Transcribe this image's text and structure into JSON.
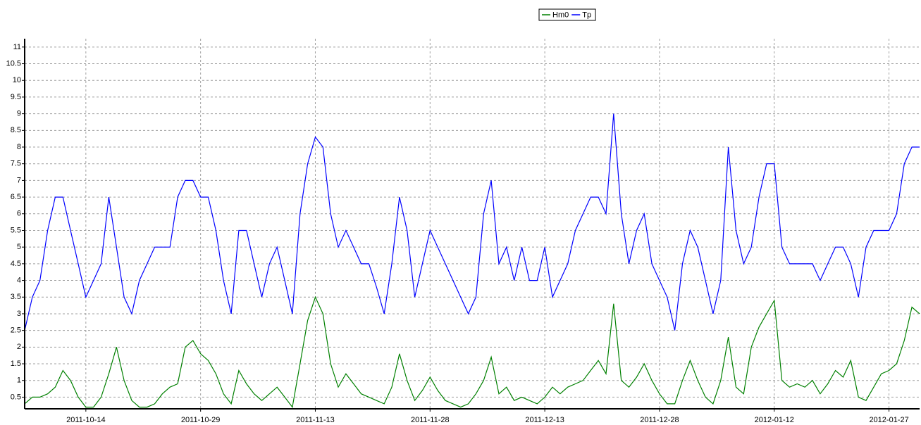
{
  "chart_data": {
    "type": "line",
    "x": [
      "2011-10-06",
      "2011-10-07",
      "2011-10-08",
      "2011-10-09",
      "2011-10-10",
      "2011-10-11",
      "2011-10-12",
      "2011-10-13",
      "2011-10-14",
      "2011-10-15",
      "2011-10-16",
      "2011-10-17",
      "2011-10-18",
      "2011-10-19",
      "2011-10-20",
      "2011-10-21",
      "2011-10-22",
      "2011-10-23",
      "2011-10-24",
      "2011-10-25",
      "2011-10-26",
      "2011-10-27",
      "2011-10-28",
      "2011-10-29",
      "2011-10-30",
      "2011-10-31",
      "2011-11-01",
      "2011-11-02",
      "2011-11-03",
      "2011-11-04",
      "2011-11-05",
      "2011-11-06",
      "2011-11-07",
      "2011-11-08",
      "2011-11-09",
      "2011-11-10",
      "2011-11-11",
      "2011-11-12",
      "2011-11-13",
      "2011-11-14",
      "2011-11-15",
      "2011-11-16",
      "2011-11-17",
      "2011-11-18",
      "2011-11-19",
      "2011-11-20",
      "2011-11-21",
      "2011-11-22",
      "2011-11-23",
      "2011-11-24",
      "2011-11-25",
      "2011-11-26",
      "2011-11-27",
      "2011-11-28",
      "2011-11-29",
      "2011-11-30",
      "2011-12-01",
      "2011-12-02",
      "2011-12-03",
      "2011-12-04",
      "2011-12-05",
      "2011-12-06",
      "2011-12-07",
      "2011-12-08",
      "2011-12-09",
      "2011-12-10",
      "2011-12-11",
      "2011-12-12",
      "2011-12-13",
      "2011-12-14",
      "2011-12-15",
      "2011-12-16",
      "2011-12-17",
      "2011-12-18",
      "2011-12-19",
      "2011-12-20",
      "2011-12-21",
      "2011-12-22",
      "2011-12-23",
      "2011-12-24",
      "2011-12-25",
      "2011-12-26",
      "2011-12-27",
      "2011-12-28",
      "2011-12-29",
      "2011-12-30",
      "2011-12-31",
      "2012-01-01",
      "2012-01-02",
      "2012-01-03",
      "2012-01-04",
      "2012-01-05",
      "2012-01-06",
      "2012-01-07",
      "2012-01-08",
      "2012-01-09",
      "2012-01-10",
      "2012-01-11",
      "2012-01-12",
      "2012-01-13",
      "2012-01-14",
      "2012-01-15",
      "2012-01-16",
      "2012-01-17",
      "2012-01-18",
      "2012-01-19",
      "2012-01-20",
      "2012-01-21",
      "2012-01-22",
      "2012-01-23",
      "2012-01-24",
      "2012-01-25",
      "2012-01-26",
      "2012-01-27",
      "2012-01-28",
      "2012-01-29",
      "2012-01-30",
      "2012-01-31"
    ],
    "series": [
      {
        "name": "Hm0",
        "color": "#008000",
        "values": [
          0.3,
          0.5,
          0.5,
          0.6,
          0.8,
          1.3,
          1.0,
          0.5,
          0.2,
          0.2,
          0.5,
          1.2,
          2.0,
          1.0,
          0.4,
          0.2,
          0.2,
          0.3,
          0.6,
          0.8,
          0.9,
          2.0,
          2.2,
          1.8,
          1.6,
          1.2,
          0.6,
          0.3,
          1.3,
          0.9,
          0.6,
          0.4,
          0.6,
          0.8,
          0.5,
          0.2,
          1.5,
          2.8,
          3.5,
          3.0,
          1.5,
          0.8,
          1.2,
          0.9,
          0.6,
          0.5,
          0.4,
          0.3,
          0.8,
          1.8,
          1.0,
          0.4,
          0.7,
          1.1,
          0.7,
          0.4,
          0.3,
          0.2,
          0.3,
          0.6,
          1.0,
          1.7,
          0.6,
          0.8,
          0.4,
          0.5,
          0.4,
          0.3,
          0.5,
          0.8,
          0.6,
          0.8,
          0.9,
          1.0,
          1.3,
          1.6,
          1.2,
          3.3,
          1.0,
          0.8,
          1.1,
          1.5,
          1.0,
          0.6,
          0.3,
          0.3,
          1.0,
          1.6,
          1.0,
          0.5,
          0.3,
          1.0,
          2.3,
          0.8,
          0.6,
          2.0,
          2.6,
          3.0,
          3.4,
          1.0,
          0.8,
          0.9,
          0.8,
          1.0,
          0.6,
          0.9,
          1.3,
          1.1,
          1.6,
          0.5,
          0.4,
          0.8,
          1.2,
          1.3,
          1.5,
          2.2,
          3.2,
          3.0
        ]
      },
      {
        "name": "Tp",
        "color": "#0000ff",
        "values": [
          2.5,
          3.5,
          4,
          5.5,
          6.5,
          6.5,
          5.5,
          4.5,
          3.5,
          4,
          4.5,
          6.5,
          5,
          3.5,
          3,
          4,
          4.5,
          5,
          5,
          5,
          6.5,
          7,
          7,
          6.5,
          6.5,
          5.5,
          4,
          3,
          5.5,
          5.5,
          4.5,
          3.5,
          4.5,
          5,
          4,
          3,
          6,
          7.5,
          8.3,
          8,
          6,
          5,
          5.5,
          5,
          4.5,
          4.5,
          3.8,
          3,
          4.5,
          6.5,
          5.5,
          3.5,
          4.5,
          5.5,
          5,
          4.5,
          4,
          3.5,
          3,
          3.5,
          6,
          7,
          4.5,
          5,
          4,
          5,
          4,
          4,
          5,
          3.5,
          4,
          4.5,
          5.5,
          6,
          6.5,
          6.5,
          6,
          9,
          6,
          4.5,
          5.5,
          6,
          4.5,
          4,
          3.5,
          2.5,
          4.5,
          5.5,
          5,
          4,
          3,
          4,
          8,
          5.5,
          4.5,
          5,
          6.5,
          7.5,
          7.5,
          5,
          4.5,
          4.5,
          4.5,
          4.5,
          4,
          4.5,
          5,
          5,
          4.5,
          3.5,
          5,
          5.5,
          5.5,
          5.5,
          6,
          7.5,
          8,
          8
        ]
      }
    ],
    "xlim": [
      "2011-10-06",
      "2012-01-31"
    ],
    "xticks": [
      "2011-10-14",
      "2011-10-29",
      "2011-11-13",
      "2011-11-28",
      "2011-12-13",
      "2011-12-28",
      "2012-01-12",
      "2012-01-27"
    ],
    "ylim": [
      0.15,
      11.25
    ],
    "yticks": [
      0.5,
      1,
      1.5,
      2,
      2.5,
      3,
      3.5,
      4,
      4.5,
      5,
      5.5,
      6,
      6.5,
      7,
      7.5,
      8,
      8.5,
      9,
      9.5,
      10,
      10.5,
      11
    ],
    "grid": true,
    "legend": "top"
  }
}
